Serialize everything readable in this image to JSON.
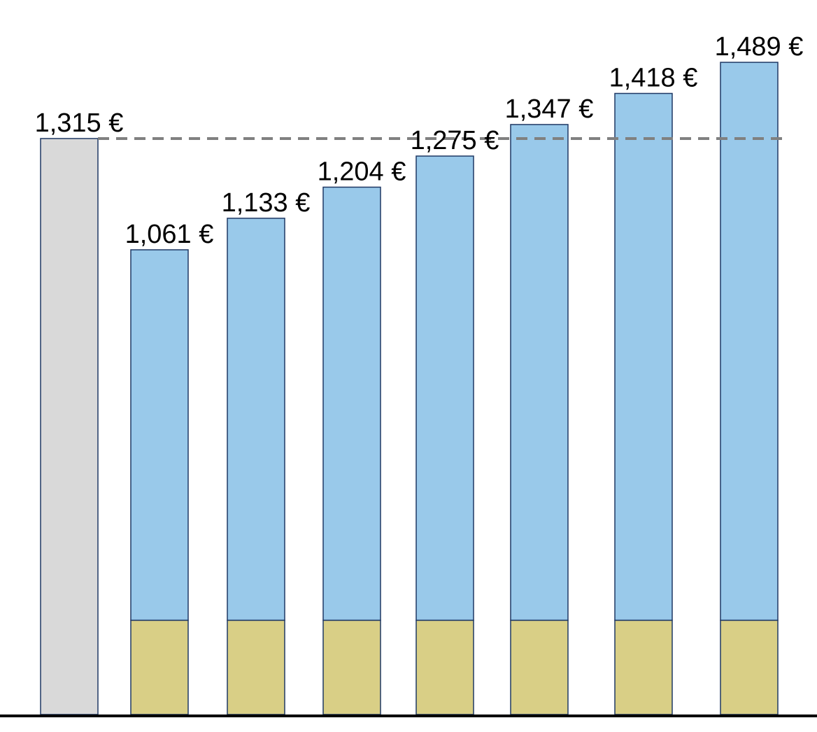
{
  "chart_data": {
    "type": "bar",
    "categories": [
      "",
      "",
      "",
      "",
      "",
      "",
      "",
      ""
    ],
    "values": [
      1315,
      1061,
      1133,
      1204,
      1275,
      1347,
      1418,
      1489
    ],
    "value_labels": [
      "1,315 €",
      "1,061 €",
      "1,133 €",
      "1,204 €",
      "1,275 €",
      "1,347 €",
      "1,418 €",
      "1,489 €"
    ],
    "bottom_segment_value": 215,
    "reference_line_value": 1315,
    "ylim": [
      0,
      1600
    ],
    "grid": false,
    "title": "",
    "xlabel": "",
    "ylabel": ""
  },
  "colors": {
    "reference_bar": "#d9d9d9",
    "top_segment": "#99c9ea",
    "bottom_segment": "#d9cf86",
    "bar_outline": "#1f3864",
    "reference_line": "#808080",
    "axis": "#000000",
    "text": "#000000"
  }
}
